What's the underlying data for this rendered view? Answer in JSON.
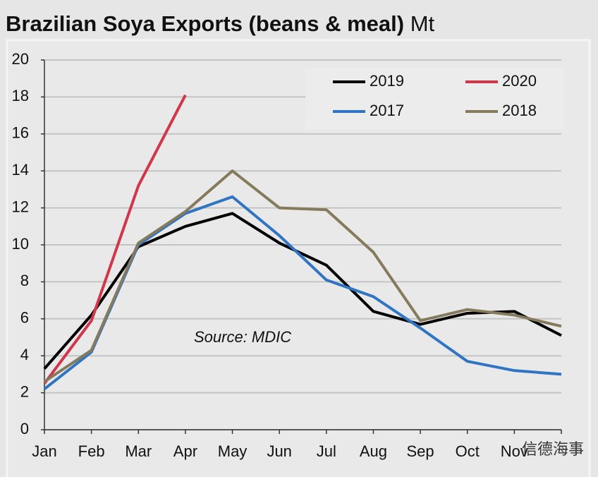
{
  "chart_data": {
    "type": "line",
    "title": "Brazilian Soya Exports (beans & meal)",
    "title_unit": "Mt",
    "annotation": "Source: MDIC",
    "watermark": "信德海事",
    "categories": [
      "Jan",
      "Feb",
      "Mar",
      "Apr",
      "May",
      "Jun",
      "Jul",
      "Aug",
      "Sep",
      "Oct",
      "Nov",
      null
    ],
    "series": [
      {
        "name": "2019",
        "color": "#000000",
        "values": [
          3.3,
          6.2,
          9.9,
          11.0,
          11.7,
          10.1,
          8.9,
          6.4,
          5.7,
          6.3,
          6.4,
          5.1
        ]
      },
      {
        "name": "2020",
        "color": "#d0374a",
        "values": [
          2.5,
          5.9,
          13.2,
          18.1,
          null,
          null,
          null,
          null,
          null,
          null,
          null,
          null
        ]
      },
      {
        "name": "2017",
        "color": "#2f75c4",
        "values": [
          2.2,
          4.2,
          10.0,
          11.7,
          12.6,
          10.5,
          8.1,
          7.2,
          5.5,
          3.7,
          3.2,
          3.0
        ]
      },
      {
        "name": "2018",
        "color": "#857a5c",
        "values": [
          2.6,
          4.3,
          10.1,
          11.8,
          14.0,
          12.0,
          11.9,
          9.6,
          5.9,
          6.5,
          6.2,
          5.6
        ]
      }
    ],
    "ylim": [
      0,
      20
    ],
    "yticks": [
      0,
      2,
      4,
      6,
      8,
      10,
      12,
      14,
      16,
      18,
      20
    ],
    "grid": true,
    "legend": "top-right"
  }
}
